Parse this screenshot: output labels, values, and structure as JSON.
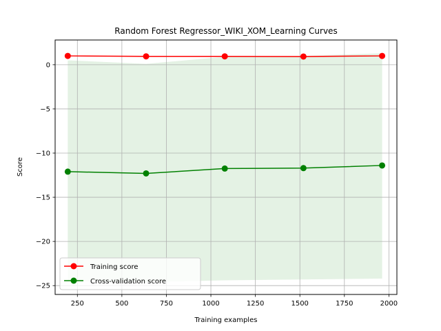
{
  "chart_data": {
    "type": "line",
    "title": "Random Forest Regressor_WIKI_XOM_Learning Curves",
    "xlabel": "Training examples",
    "ylabel": "Score",
    "xlim": [
      125,
      2045
    ],
    "ylim": [
      -26,
      2.8
    ],
    "xticks": [
      250,
      500,
      750,
      1000,
      1250,
      1500,
      1750,
      2000
    ],
    "xtick_labels": [
      "250",
      "500",
      "750",
      "1000",
      "1250",
      "1500",
      "1750",
      "2000"
    ],
    "yticks": [
      0,
      -5,
      -10,
      -15,
      -20,
      -25
    ],
    "ytick_labels": [
      "0",
      "−5",
      "−10",
      "−15",
      "−20",
      "−25"
    ],
    "grid": true,
    "legend_position": "lower-left",
    "x": [
      196,
      636,
      1078,
      1520,
      1962
    ],
    "series": [
      {
        "name": "Training score",
        "color": "#ff0000",
        "values": [
          1.0,
          0.95,
          0.95,
          0.93,
          1.0
        ],
        "band_upper": [
          1.0,
          0.95,
          0.95,
          0.93,
          1.0
        ],
        "band_lower": [
          1.0,
          0.95,
          0.95,
          0.93,
          1.0
        ]
      },
      {
        "name": "Cross-validation score",
        "color": "#008000",
        "band_color": "#e4f2e4",
        "values": [
          -12.1,
          -12.3,
          -11.75,
          -11.7,
          -11.4
        ],
        "band_upper": [
          0.5,
          0.1,
          0.9,
          1.0,
          1.3
        ],
        "band_lower": [
          -24.5,
          -24.6,
          -24.4,
          -24.3,
          -24.2
        ]
      }
    ]
  }
}
